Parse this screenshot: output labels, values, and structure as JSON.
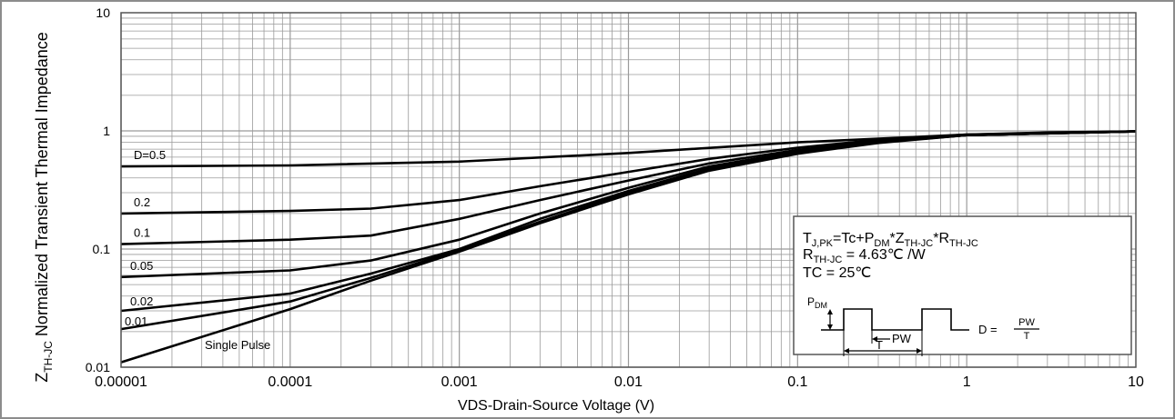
{
  "chart_data": {
    "type": "line",
    "title": "",
    "xlabel": "VDS-Drain-Source Voltage (V)",
    "ylabel": "Normalized Transient Thermal Impedance",
    "ylabel_prefix": "Z",
    "ylabel_sub": "TH-JC",
    "x_scale": "log",
    "y_scale": "log",
    "xlim": [
      1e-05,
      10
    ],
    "ylim": [
      0.01,
      10
    ],
    "grid": true,
    "x_tick_labels": [
      "0.00001",
      "0.0001",
      "0.001",
      "0.01",
      "0.1",
      "1",
      "10"
    ],
    "y_tick_labels": [
      "0.01",
      "0.1",
      "1",
      "10"
    ],
    "series": [
      {
        "name": "D=0.5",
        "points": [
          [
            1e-05,
            0.5
          ],
          [
            0.0001,
            0.51
          ],
          [
            0.001,
            0.55
          ],
          [
            0.01,
            0.65
          ],
          [
            0.1,
            0.8
          ],
          [
            1,
            0.93
          ],
          [
            3,
            0.97
          ],
          [
            10,
            0.99
          ]
        ]
      },
      {
        "name": "0.2",
        "points": [
          [
            1e-05,
            0.2
          ],
          [
            0.0001,
            0.21
          ],
          [
            0.0003,
            0.22
          ],
          [
            0.001,
            0.26
          ],
          [
            0.003,
            0.34
          ],
          [
            0.01,
            0.45
          ],
          [
            0.03,
            0.58
          ],
          [
            0.1,
            0.72
          ],
          [
            0.3,
            0.84
          ],
          [
            1,
            0.93
          ],
          [
            10,
            0.99
          ]
        ]
      },
      {
        "name": "0.1",
        "points": [
          [
            1e-05,
            0.11
          ],
          [
            0.0001,
            0.12
          ],
          [
            0.0003,
            0.13
          ],
          [
            0.001,
            0.18
          ],
          [
            0.003,
            0.26
          ],
          [
            0.01,
            0.38
          ],
          [
            0.03,
            0.53
          ],
          [
            0.1,
            0.69
          ],
          [
            0.3,
            0.82
          ],
          [
            1,
            0.92
          ],
          [
            10,
            0.99
          ]
        ]
      },
      {
        "name": "0.05",
        "points": [
          [
            1e-05,
            0.058
          ],
          [
            0.0001,
            0.066
          ],
          [
            0.0003,
            0.08
          ],
          [
            0.001,
            0.12
          ],
          [
            0.003,
            0.2
          ],
          [
            0.01,
            0.33
          ],
          [
            0.03,
            0.5
          ],
          [
            0.1,
            0.67
          ],
          [
            0.3,
            0.81
          ],
          [
            1,
            0.92
          ],
          [
            10,
            0.99
          ]
        ]
      },
      {
        "name": "0.02",
        "points": [
          [
            1e-05,
            0.03
          ],
          [
            0.0001,
            0.042
          ],
          [
            0.0003,
            0.062
          ],
          [
            0.001,
            0.1
          ],
          [
            0.003,
            0.18
          ],
          [
            0.01,
            0.31
          ],
          [
            0.03,
            0.48
          ],
          [
            0.1,
            0.66
          ],
          [
            0.3,
            0.8
          ],
          [
            1,
            0.92
          ],
          [
            10,
            0.99
          ]
        ]
      },
      {
        "name": "0.01",
        "points": [
          [
            1e-05,
            0.021
          ],
          [
            0.0001,
            0.036
          ],
          [
            0.0003,
            0.057
          ],
          [
            0.001,
            0.098
          ],
          [
            0.003,
            0.17
          ],
          [
            0.01,
            0.3
          ],
          [
            0.03,
            0.47
          ],
          [
            0.1,
            0.65
          ],
          [
            0.3,
            0.8
          ],
          [
            1,
            0.92
          ],
          [
            10,
            0.99
          ]
        ]
      },
      {
        "name": "Single Pulse",
        "points": [
          [
            1e-05,
            0.011
          ],
          [
            0.0001,
            0.031
          ],
          [
            0.0003,
            0.054
          ],
          [
            0.001,
            0.095
          ],
          [
            0.003,
            0.165
          ],
          [
            0.01,
            0.29
          ],
          [
            0.03,
            0.46
          ],
          [
            0.1,
            0.64
          ],
          [
            0.3,
            0.79
          ],
          [
            1,
            0.92
          ],
          [
            10,
            0.99
          ]
        ]
      }
    ],
    "legend": {
      "placement": "bottom-right",
      "line1": {
        "a": "T",
        "a_sub": "J,PK",
        "b": "=Tc+P",
        "b_sub": "DM",
        "c": "*Z",
        "c_sub": "TH-JC",
        "d": "*R",
        "d_sub": "TH-JC"
      },
      "line2": {
        "a": "R",
        "a_sub": "TH-JC",
        "b": " = 4.63℃ /W"
      },
      "line3": "TC = 25℃",
      "pulse_pdm": "P",
      "pulse_pdm_sub": "DM",
      "pulse_pw": "PW",
      "pulse_t": "T",
      "duty_lhs": "D =",
      "duty_num": "PW",
      "duty_den": "T"
    },
    "colors": {
      "line": "#000000",
      "grid": "#9a9a9a",
      "frame": "#7f7f7f"
    }
  }
}
